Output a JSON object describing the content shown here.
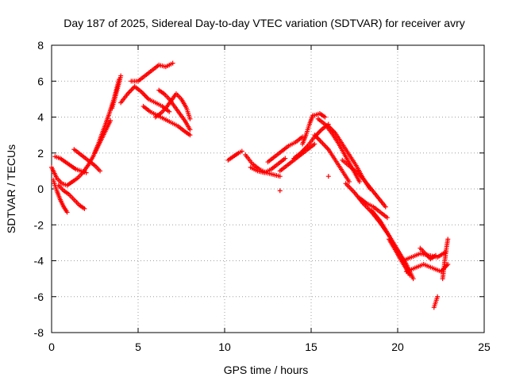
{
  "chart_data": {
    "type": "scatter",
    "title": "Day 187 of 2025, Sidereal Day-to-day VTEC variation (SDTVAR) for receiver avry",
    "xlabel": "GPS time / hours",
    "ylabel": "SDTVAR / TECUs",
    "xlim": [
      0,
      25
    ],
    "ylim": [
      -8,
      8
    ],
    "xticks": [
      0,
      5,
      10,
      15,
      20,
      25
    ],
    "yticks": [
      -8,
      -6,
      -4,
      -2,
      0,
      2,
      4,
      6,
      8
    ],
    "xtick_labels": [
      "0",
      "5",
      "10",
      "15",
      "20",
      "25"
    ],
    "ytick_labels": [
      "-8",
      "-6",
      "-4",
      "-2",
      "0",
      "2",
      "4",
      "6",
      "8"
    ],
    "grid": true,
    "marker": "+",
    "color": "#ff0000",
    "tracks": [
      {
        "x": [
          0.0,
          0.3,
          0.6,
          0.9,
          1.2,
          1.5,
          1.8,
          2.1,
          2.4,
          2.7,
          3.0,
          3.3,
          3.6,
          3.9
        ],
        "y": [
          1.2,
          0.6,
          0.3,
          0.2,
          0.4,
          0.6,
          0.9,
          1.3,
          1.8,
          2.5,
          3.3,
          4.1,
          5.0,
          6.1
        ]
      },
      {
        "x": [
          0.1,
          0.3,
          0.5,
          0.7,
          0.9
        ],
        "y": [
          0.5,
          -0.1,
          -0.6,
          -1.0,
          -1.3
        ]
      },
      {
        "x": [
          0.2,
          0.5,
          0.8,
          1.1,
          1.4,
          1.7,
          2.0
        ],
        "y": [
          1.8,
          1.7,
          1.5,
          1.3,
          1.1,
          1.0,
          0.9
        ]
      },
      {
        "x": [
          0.4,
          0.7,
          1.0,
          1.3,
          1.6,
          1.9
        ],
        "y": [
          0.2,
          -0.1,
          -0.3,
          -0.6,
          -0.9,
          -1.1
        ]
      },
      {
        "x": [
          1.3,
          1.7,
          2.1,
          2.5,
          2.8
        ],
        "y": [
          2.2,
          1.9,
          1.6,
          1.3,
          1.0
        ]
      },
      {
        "x": [
          2.5,
          2.8,
          3.1,
          3.4
        ],
        "y": [
          2.0,
          2.6,
          3.2,
          3.8
        ]
      },
      {
        "x": [
          3.5,
          3.7,
          3.9,
          4.0
        ],
        "y": [
          4.5,
          5.2,
          5.9,
          6.3
        ]
      },
      {
        "x": [
          4.0,
          4.4,
          4.8,
          5.2,
          5.6,
          6.0,
          6.4,
          6.8
        ],
        "y": [
          4.8,
          5.3,
          5.7,
          5.4,
          5.0,
          4.8,
          4.6,
          4.3
        ]
      },
      {
        "x": [
          4.6,
          5.0,
          5.4,
          5.8,
          6.2,
          6.6,
          7.0
        ],
        "y": [
          6.0,
          6.0,
          6.3,
          6.6,
          6.9,
          6.8,
          7.0
        ]
      },
      {
        "x": [
          5.3,
          5.7,
          6.1,
          6.5,
          6.9,
          7.3,
          7.7,
          8.0
        ],
        "y": [
          4.6,
          4.3,
          4.1,
          3.9,
          3.7,
          3.5,
          3.2,
          3.0
        ]
      },
      {
        "x": [
          6.2,
          6.5,
          6.8,
          7.1,
          7.4,
          7.7,
          8.0
        ],
        "y": [
          5.5,
          5.3,
          5.0,
          4.6,
          4.2,
          3.8,
          3.3
        ]
      },
      {
        "x": [
          6.0,
          6.3,
          6.6,
          6.9,
          7.2,
          7.5,
          7.8,
          8.0
        ],
        "y": [
          4.0,
          4.2,
          4.5,
          4.9,
          5.3,
          5.0,
          4.5,
          3.9
        ]
      },
      {
        "x": [
          10.2,
          10.5,
          10.8,
          11.0
        ],
        "y": [
          1.6,
          1.8,
          2.0,
          2.1
        ]
      },
      {
        "x": [
          11.2,
          11.6,
          12.0,
          12.4,
          12.8,
          13.2
        ],
        "y": [
          1.9,
          1.4,
          1.1,
          0.9,
          0.8,
          0.7
        ]
      },
      {
        "x": [
          11.5,
          11.9,
          12.3,
          12.7,
          13.1,
          13.5
        ],
        "y": [
          1.2,
          1.0,
          0.9,
          1.1,
          1.4,
          1.7
        ]
      },
      {
        "x": [
          12.5,
          12.9,
          13.3,
          13.7,
          14.1,
          14.5
        ],
        "y": [
          1.5,
          1.8,
          2.1,
          2.4,
          2.6,
          2.9
        ]
      },
      {
        "x": [
          13.2,
          13.6,
          14.0,
          14.4,
          14.8,
          15.2
        ],
        "y": [
          1.0,
          1.3,
          1.6,
          1.9,
          2.2,
          2.5
        ]
      },
      {
        "x": [
          14.0,
          14.4,
          14.8,
          15.2,
          15.6,
          16.0
        ],
        "y": [
          1.7,
          2.0,
          2.4,
          2.9,
          3.3,
          3.6
        ]
      },
      {
        "x": [
          14.5,
          14.7,
          14.9,
          15.1
        ],
        "y": [
          2.5,
          3.0,
          3.6,
          4.1
        ]
      },
      {
        "x": [
          15.2,
          15.5,
          15.8
        ],
        "y": [
          4.1,
          4.2,
          4.0
        ]
      },
      {
        "x": [
          15.2,
          15.6,
          16.0,
          16.4,
          16.8,
          17.2
        ],
        "y": [
          3.0,
          2.6,
          2.2,
          1.6,
          1.0,
          0.4
        ]
      },
      {
        "x": [
          15.4,
          15.8,
          16.2,
          16.6,
          17.0,
          17.4,
          17.8
        ],
        "y": [
          3.9,
          3.6,
          3.1,
          2.5,
          1.8,
          1.1,
          0.4
        ]
      },
      {
        "x": [
          16.0,
          16.4,
          16.8,
          17.2,
          17.6,
          18.0,
          18.4
        ],
        "y": [
          3.5,
          3.1,
          2.5,
          1.9,
          1.3,
          0.6,
          0.0
        ]
      },
      {
        "x": [
          16.8,
          17.3,
          17.8,
          18.3,
          18.8,
          19.3
        ],
        "y": [
          1.6,
          1.2,
          0.8,
          0.2,
          -0.4,
          -1.0
        ]
      },
      {
        "x": [
          17.0,
          17.5,
          18.0,
          18.5,
          19.0,
          19.5
        ],
        "y": [
          0.3,
          -0.2,
          -0.8,
          -1.3,
          -1.9,
          -2.6
        ]
      },
      {
        "x": [
          17.8,
          18.2,
          18.6,
          19.0,
          19.4
        ],
        "y": [
          -0.5,
          -0.8,
          -1.0,
          -1.3,
          -1.6
        ]
      },
      {
        "x": [
          18.5,
          19.0,
          19.5,
          20.0,
          20.5,
          20.9
        ],
        "y": [
          -1.2,
          -1.8,
          -2.6,
          -3.4,
          -4.2,
          -5.0
        ]
      },
      {
        "x": [
          19.5,
          19.8,
          20.1,
          20.4,
          20.7
        ],
        "y": [
          -2.8,
          -3.3,
          -3.8,
          -4.3,
          -4.8
        ]
      },
      {
        "x": [
          20.3,
          20.8,
          21.3,
          21.8,
          22.3,
          22.8
        ],
        "y": [
          -4.0,
          -3.8,
          -3.6,
          -3.7,
          -3.8,
          -3.5
        ]
      },
      {
        "x": [
          20.5,
          21.0,
          21.5,
          22.0,
          22.5,
          22.9
        ],
        "y": [
          -4.6,
          -4.4,
          -4.2,
          -4.4,
          -4.6,
          -4.2
        ]
      },
      {
        "x": [
          21.3,
          21.6,
          21.9,
          22.2
        ],
        "y": [
          -3.3,
          -3.6,
          -3.9,
          -3.7
        ]
      },
      {
        "x": [
          22.6,
          22.7,
          22.8,
          22.9
        ],
        "y": [
          -5.0,
          -4.2,
          -3.4,
          -2.8
        ]
      },
      {
        "x": [
          22.1,
          22.2,
          22.3
        ],
        "y": [
          -6.6,
          -6.3,
          -6.0
        ]
      },
      {
        "x": [
          13.2
        ],
        "y": [
          -0.1
        ]
      },
      {
        "x": [
          16.0
        ],
        "y": [
          0.7
        ]
      }
    ]
  }
}
